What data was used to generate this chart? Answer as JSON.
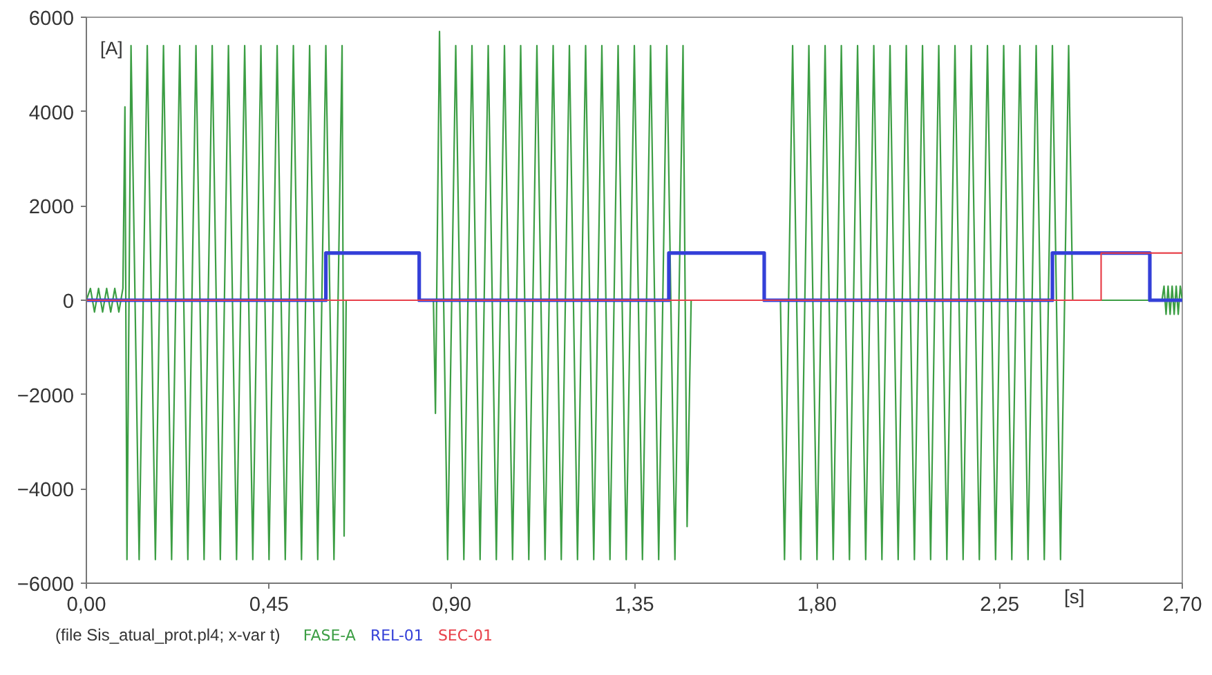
{
  "chart_data": {
    "type": "line",
    "xlabel": "[s]",
    "ylabel": "[A]",
    "annotations": [
      "(file Sis_atual_prot.pl4; x-var t)"
    ],
    "xlim": [
      0,
      2.7
    ],
    "ylim": [
      -6000,
      6000
    ],
    "xticks": [
      {
        "value": 0,
        "label": "0,00"
      },
      {
        "value": 0.45,
        "label": "0,45"
      },
      {
        "value": 0.9,
        "label": "0,90"
      },
      {
        "value": 1.35,
        "label": "1,35"
      },
      {
        "value": 1.8,
        "label": "1,80"
      },
      {
        "value": 2.25,
        "label": "2,25"
      },
      {
        "value": 2.7,
        "label": "2,70"
      }
    ],
    "yticks": [
      -6000,
      -4000,
      -2000,
      0,
      2000,
      4000,
      6000
    ],
    "grid": false,
    "legend": "bottom",
    "series": [
      {
        "name": "FASE-A",
        "color": "#3c9e44",
        "x": [
          0,
          0.01,
          0.02,
          0.03,
          0.04,
          0.05,
          0.06,
          0.07,
          0.08,
          0.09,
          0.095,
          0.1,
          0.11,
          0.13,
          0.15,
          0.17,
          0.19,
          0.21,
          0.23,
          0.25,
          0.27,
          0.29,
          0.31,
          0.33,
          0.35,
          0.37,
          0.39,
          0.41,
          0.43,
          0.45,
          0.47,
          0.49,
          0.51,
          0.53,
          0.55,
          0.57,
          0.59,
          0.61,
          0.63,
          0.635,
          0.64,
          0.855,
          0.86,
          0.87,
          0.89,
          0.91,
          0.93,
          0.95,
          0.97,
          0.99,
          1.01,
          1.03,
          1.05,
          1.07,
          1.09,
          1.11,
          1.13,
          1.15,
          1.17,
          1.19,
          1.21,
          1.23,
          1.25,
          1.27,
          1.29,
          1.31,
          1.33,
          1.35,
          1.37,
          1.39,
          1.41,
          1.43,
          1.45,
          1.47,
          1.48,
          1.49,
          1.71,
          1.72,
          1.74,
          1.76,
          1.78,
          1.8,
          1.82,
          1.84,
          1.86,
          1.88,
          1.9,
          1.92,
          1.94,
          1.96,
          1.98,
          2.0,
          2.02,
          2.04,
          2.06,
          2.08,
          2.1,
          2.12,
          2.14,
          2.16,
          2.18,
          2.2,
          2.22,
          2.24,
          2.26,
          2.28,
          2.3,
          2.32,
          2.34,
          2.36,
          2.38,
          2.4,
          2.42,
          2.43,
          2.65,
          2.655,
          2.66,
          2.665,
          2.67,
          2.675,
          2.68,
          2.685,
          2.69,
          2.695,
          2.7
        ],
        "values": [
          0,
          250,
          -250,
          250,
          -250,
          250,
          -250,
          250,
          -250,
          250,
          4100,
          -5500,
          5400,
          -5500,
          5400,
          -5500,
          5400,
          -5500,
          5400,
          -5500,
          5400,
          -5500,
          5400,
          -5500,
          5400,
          -5500,
          5400,
          -5500,
          5400,
          -5500,
          5400,
          -5500,
          5400,
          -5500,
          5400,
          -5500,
          5400,
          -5500,
          5400,
          -5000,
          0,
          0,
          -2400,
          5700,
          -5500,
          5400,
          -5500,
          5400,
          -5500,
          5400,
          -5500,
          5400,
          -5500,
          5400,
          -5500,
          5400,
          -5500,
          5400,
          -5500,
          5400,
          -5500,
          5400,
          -5500,
          5400,
          -5500,
          5400,
          -5500,
          5400,
          -5500,
          5400,
          -5500,
          5400,
          -5500,
          5400,
          -4800,
          0,
          0,
          -5500,
          5400,
          -5500,
          5400,
          -5500,
          5400,
          -5500,
          5400,
          -5500,
          5400,
          -5500,
          5400,
          -5500,
          5400,
          -5500,
          5400,
          -5500,
          5400,
          -5500,
          5400,
          -5500,
          5400,
          -5500,
          5400,
          -5500,
          5400,
          -5500,
          5400,
          -5500,
          5400,
          -5500,
          5400,
          -5500,
          5400,
          -5500,
          5400,
          0,
          0,
          300,
          -300,
          300,
          -300,
          300,
          -300,
          300,
          -300,
          300,
          0
        ]
      },
      {
        "name": "REL-01",
        "color": "#3440d8",
        "x": [
          0,
          0.59,
          0.59,
          0.82,
          0.82,
          1.435,
          1.435,
          1.67,
          1.67,
          2.38,
          2.38,
          2.62,
          2.62,
          2.7
        ],
        "values": [
          0,
          0,
          1000,
          1000,
          0,
          0,
          1000,
          1000,
          0,
          0,
          1000,
          1000,
          0,
          0
        ]
      },
      {
        "name": "SEC-01",
        "color": "#e8404a",
        "x": [
          0,
          2.5,
          2.5,
          2.7
        ],
        "values": [
          0,
          0,
          1000,
          1000
        ]
      }
    ]
  }
}
